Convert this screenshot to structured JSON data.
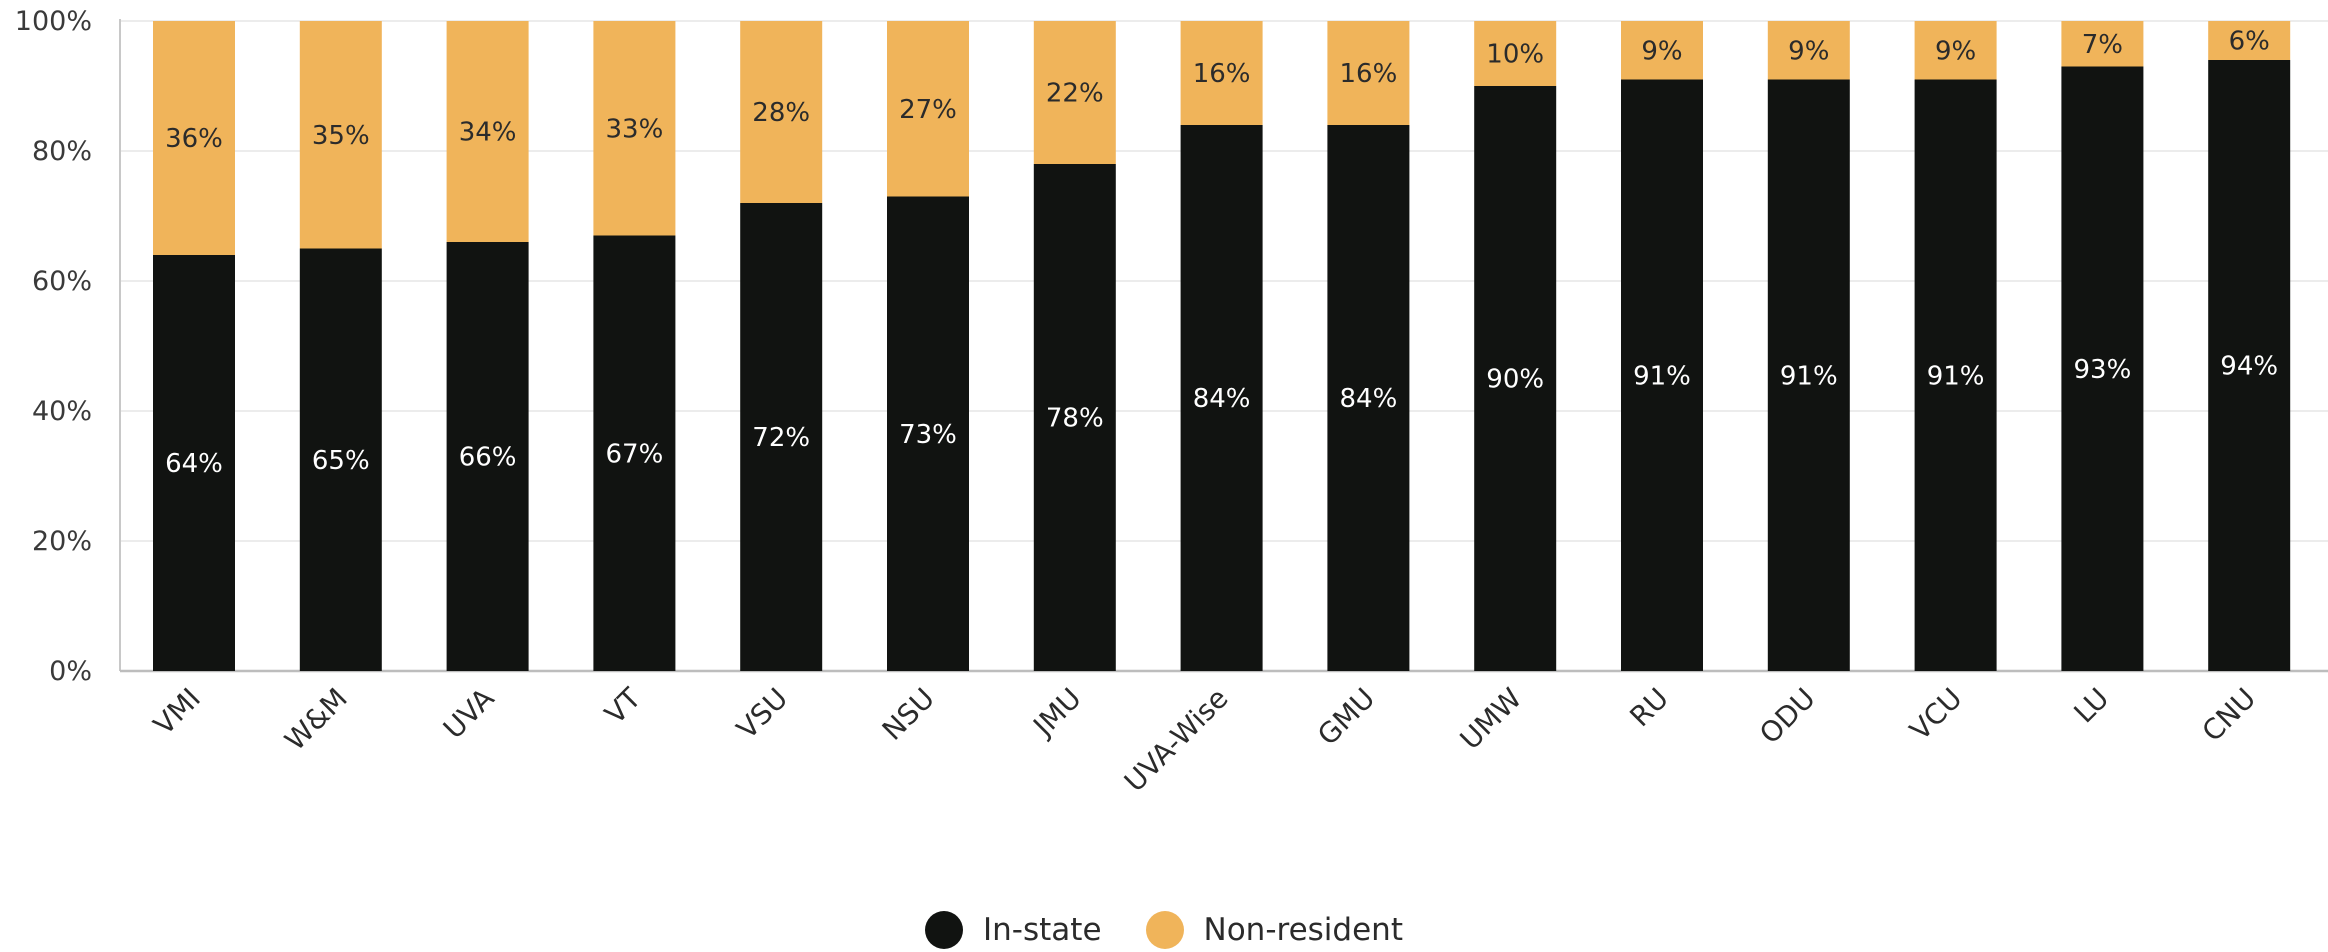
{
  "chart_data": {
    "type": "bar",
    "stacked": true,
    "categories": [
      "VMI",
      "W&M",
      "UVA",
      "VT",
      "VSU",
      "NSU",
      "JMU",
      "UVA-Wise",
      "GMU",
      "UMW",
      "RU",
      "ODU",
      "VCU",
      "LU",
      "CNU"
    ],
    "series": [
      {
        "name": "In-state",
        "color": "#111311",
        "values": [
          64,
          65,
          66,
          67,
          72,
          73,
          78,
          84,
          84,
          90,
          91,
          91,
          91,
          93,
          94
        ],
        "labels": [
          "64%",
          "65%",
          "66%",
          "67%",
          "72%",
          "73%",
          "78%",
          "84%",
          "84%",
          "90%",
          "91%",
          "91%",
          "91%",
          "93%",
          "94%"
        ]
      },
      {
        "name": "Non-resident",
        "color": "#F0B45A",
        "values": [
          36,
          35,
          34,
          33,
          28,
          27,
          22,
          16,
          16,
          10,
          9,
          9,
          9,
          7,
          6
        ],
        "labels": [
          "36%",
          "35%",
          "34%",
          "33%",
          "28%",
          "27%",
          "22%",
          "16%",
          "16%",
          "10%",
          "9%",
          "9%",
          "9%",
          "7%",
          "6%"
        ]
      }
    ],
    "yticks": [
      "0%",
      "20%",
      "40%",
      "60%",
      "80%",
      "100%"
    ],
    "ylim": [
      0,
      100
    ],
    "grid": true,
    "legend_position": "bottom-center",
    "title": "",
    "xlabel": "",
    "ylabel": ""
  },
  "legend": {
    "items": [
      {
        "label": "In-state",
        "color": "#111311"
      },
      {
        "label": "Non-resident",
        "color": "#F0B45A"
      }
    ]
  }
}
